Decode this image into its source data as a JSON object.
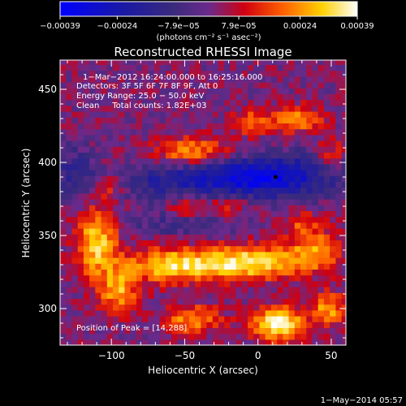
{
  "chart_data": {
    "type": "heatmap",
    "title": "Reconstructed RHESSI Image",
    "xlabel": "Heliocentric X (arcsec)",
    "ylabel": "Heliocentric Y (arcsec)",
    "xlim": [
      -135,
      60
    ],
    "ylim": [
      275,
      470
    ],
    "x_ticks": [
      -100,
      -50,
      0,
      50
    ],
    "y_ticks": [
      300,
      350,
      400,
      450
    ],
    "x_tick_labels": [
      "−100",
      "−50",
      "0",
      "50"
    ],
    "y_tick_labels": [
      "300",
      "350",
      "400",
      "450"
    ],
    "colorbar": {
      "min": -0.00039,
      "max": 0.00039,
      "ticks": [
        -0.00039,
        -0.00024,
        -7.9e-05,
        7.9e-05,
        0.00024,
        0.00039
      ],
      "tick_labels": [
        "−0.00039",
        "−0.00024",
        "−7.9e−05",
        "7.9e−05",
        "0.00024",
        "0.00039"
      ],
      "units_label": "(photons cm⁻² s⁻¹ asec⁻²)",
      "colors": [
        "#0000ff",
        "#1a1aa0",
        "#3c2a7a",
        "#7a2a8a",
        "#ff0000",
        "#ff8000",
        "#ffd000",
        "#ffffff"
      ]
    },
    "info_lines": [
      "1−Mar−2012 16:24:00.000 to 16:25:16.000",
      "Detectors: 3F 5F 6F 7F 8F 9F, Att 0",
      "Energy Range: 25.0 − 50.0 keV",
      "Clean     Total counts: 1.82E+03"
    ],
    "peak_text": "Position of Peak = [14,288]",
    "peak_position": [
      14,
      288
    ],
    "footer_date": "1−May−2014 05:57",
    "features": [
      {
        "name": "blue-band",
        "x": -20,
        "y": 392,
        "sx": 55,
        "sy": 9,
        "amp": -0.00026,
        "rot": -0.08
      },
      {
        "name": "blue-spot-2",
        "x": 12,
        "y": 385,
        "sx": 28,
        "sy": 8,
        "amp": -0.00018
      },
      {
        "name": "blue-lower",
        "x": -50,
        "y": 358,
        "sx": 25,
        "sy": 6,
        "amp": -0.00012
      },
      {
        "name": "blue-left",
        "x": -125,
        "y": 395,
        "sx": 10,
        "sy": 12,
        "amp": -0.00012
      },
      {
        "name": "src-left-1",
        "x": -110,
        "y": 345,
        "sx": 10,
        "sy": 16,
        "amp": 0.0003
      },
      {
        "name": "src-left-2",
        "x": -95,
        "y": 312,
        "sx": 9,
        "sy": 10,
        "amp": 0.00026
      },
      {
        "name": "src-left-3",
        "x": -102,
        "y": 383,
        "sx": 8,
        "sy": 7,
        "amp": 0.00016
      },
      {
        "name": "src-mid-low",
        "x": -60,
        "y": 330,
        "sx": 22,
        "sy": 8,
        "amp": 0.0003
      },
      {
        "name": "src-right-low",
        "x": -5,
        "y": 332,
        "sx": 25,
        "sy": 8,
        "amp": 0.00034
      },
      {
        "name": "src-right-2",
        "x": 40,
        "y": 340,
        "sx": 12,
        "sy": 9,
        "amp": 0.00022
      },
      {
        "name": "src-top-1",
        "x": -45,
        "y": 407,
        "sx": 18,
        "sy": 7,
        "amp": 0.00024
      },
      {
        "name": "src-top-2",
        "x": 25,
        "y": 430,
        "sx": 12,
        "sy": 6,
        "amp": 0.00026
      },
      {
        "name": "src-top-3",
        "x": -5,
        "y": 428,
        "sx": 8,
        "sy": 6,
        "amp": 0.00018
      },
      {
        "name": "src-top-4",
        "x": 50,
        "y": 405,
        "sx": 8,
        "sy": 8,
        "amp": 0.00016
      },
      {
        "name": "src-bot-peak",
        "x": 14,
        "y": 290,
        "sx": 12,
        "sy": 8,
        "amp": 0.00039
      },
      {
        "name": "src-bot-2",
        "x": -45,
        "y": 293,
        "sx": 14,
        "sy": 7,
        "amp": 0.00022
      },
      {
        "name": "src-bot-3",
        "x": 48,
        "y": 300,
        "sx": 8,
        "sy": 8,
        "amp": 0.00024
      },
      {
        "name": "src-mid-1",
        "x": -45,
        "y": 368,
        "sx": 10,
        "sy": 6,
        "amp": 0.00014
      },
      {
        "name": "src-mid-2",
        "x": 30,
        "y": 358,
        "sx": 10,
        "sy": 6,
        "amp": 0.00014
      },
      {
        "name": "src-mid-3",
        "x": -20,
        "y": 370,
        "sx": 9,
        "sy": 5,
        "amp": 0.00012
      }
    ]
  }
}
